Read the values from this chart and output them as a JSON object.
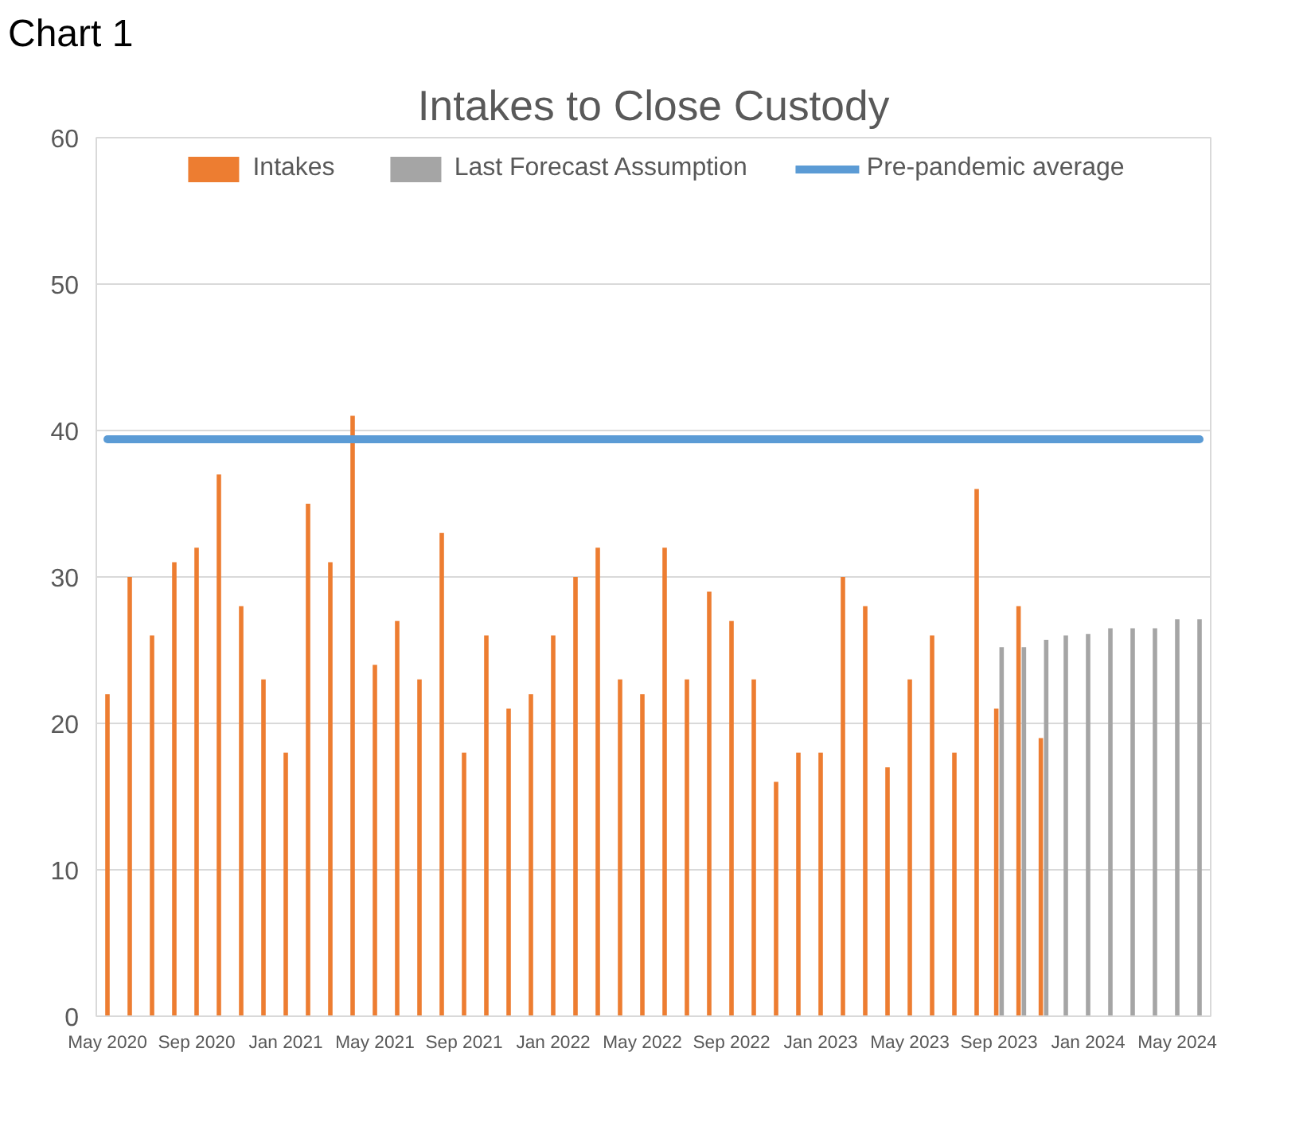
{
  "chart_data": {
    "type": "bar",
    "title": "Intakes to Close Custody",
    "annotations": [
      "Chart 1"
    ],
    "categories": [
      "May 2020",
      null,
      null,
      null,
      "Sep 2020",
      null,
      null,
      null,
      "Jan 2021",
      null,
      null,
      null,
      "May 2021",
      null,
      null,
      null,
      "Sep 2021",
      null,
      null,
      null,
      "Jan 2022",
      null,
      null,
      null,
      "May 2022",
      null,
      null,
      null,
      "Sep 2022",
      null,
      null,
      null,
      "Jan 2023",
      null,
      null,
      null,
      "May 2023",
      null,
      null,
      null,
      "Sep 2023",
      null,
      null,
      null,
      "Jan 2024",
      null,
      null,
      null,
      "May 2024",
      null
    ],
    "series": [
      {
        "name": "Intakes",
        "color": "#ed7d31",
        "values": [
          22,
          30,
          26,
          31,
          32,
          37,
          28,
          23,
          18,
          35,
          31,
          41,
          24,
          27,
          23,
          33,
          18,
          26,
          21,
          22,
          26,
          30,
          32,
          23,
          22,
          32,
          23,
          29,
          27,
          23,
          16,
          18,
          18,
          30,
          28,
          17,
          23,
          26,
          18,
          36,
          21,
          28,
          19,
          null,
          null,
          null,
          null,
          null,
          null,
          null
        ]
      },
      {
        "name": "Last Forecast Assumption",
        "color": "#a5a5a5",
        "values": [
          null,
          null,
          null,
          null,
          null,
          null,
          null,
          null,
          null,
          null,
          null,
          null,
          null,
          null,
          null,
          null,
          null,
          null,
          null,
          null,
          null,
          null,
          null,
          null,
          null,
          null,
          null,
          null,
          null,
          null,
          null,
          null,
          null,
          null,
          null,
          null,
          null,
          null,
          null,
          null,
          25.2,
          25.2,
          25.7,
          26.0,
          26.1,
          26.5,
          26.5,
          26.5,
          27.1,
          27.1
        ]
      },
      {
        "name": "Pre-pandemic average",
        "color": "#5b9bd5",
        "type": "line",
        "values": [
          39.4,
          39.4,
          39.4,
          39.4,
          39.4,
          39.4,
          39.4,
          39.4,
          39.4,
          39.4,
          39.4,
          39.4,
          39.4,
          39.4,
          39.4,
          39.4,
          39.4,
          39.4,
          39.4,
          39.4,
          39.4,
          39.4,
          39.4,
          39.4,
          39.4,
          39.4,
          39.4,
          39.4,
          39.4,
          39.4,
          39.4,
          39.4,
          39.4,
          39.4,
          39.4,
          39.4,
          39.4,
          39.4,
          39.4,
          39.4,
          39.4,
          39.4,
          39.4,
          39.4,
          39.4,
          39.4,
          39.4,
          39.4,
          39.4,
          39.4
        ]
      }
    ],
    "ylim": [
      0,
      60
    ],
    "yticks": [
      0,
      10,
      20,
      30,
      40,
      50,
      60
    ],
    "grid": "y",
    "legend": "top"
  }
}
